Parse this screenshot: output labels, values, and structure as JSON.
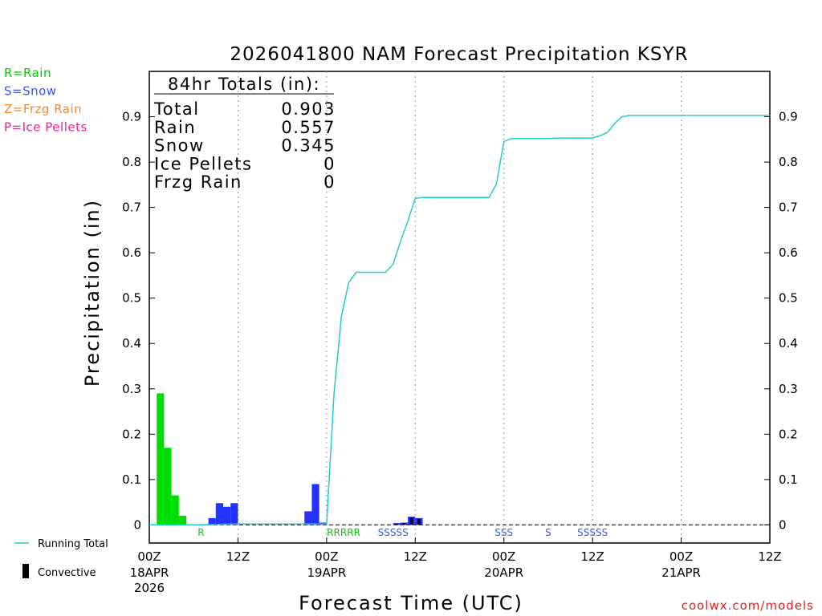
{
  "chart_data": {
    "type": "bar",
    "title": "2026041800 NAM Forecast Precipitation KSYR",
    "xlabel": "Forecast Time (UTC)",
    "ylabel": "Precipitation  (in)",
    "ylim": [
      -0.04,
      1.0
    ],
    "xlim_hours": [
      0,
      84
    ],
    "y_ticks": [
      0,
      0.1,
      0.2,
      0.3,
      0.4,
      0.5,
      0.6,
      0.7,
      0.8,
      0.9
    ],
    "y_tick_labels": [
      "0",
      "0.1",
      "0.2",
      "0.3",
      "0.4",
      "0.5",
      "0.6",
      "0.7",
      "0.8",
      "0.9"
    ],
    "x_ticks": [
      {
        "hour": 0,
        "label": "00Z",
        "date": "18APR",
        "year": "2026"
      },
      {
        "hour": 12,
        "label": "12Z",
        "date": "",
        "year": ""
      },
      {
        "hour": 24,
        "label": "00Z",
        "date": "19APR",
        "year": ""
      },
      {
        "hour": 36,
        "label": "12Z",
        "date": "",
        "year": ""
      },
      {
        "hour": 48,
        "label": "00Z",
        "date": "20APR",
        "year": ""
      },
      {
        "hour": 60,
        "label": "12Z",
        "date": "",
        "year": ""
      },
      {
        "hour": 72,
        "label": "00Z",
        "date": "21APR",
        "year": ""
      },
      {
        "hour": 84,
        "label": "12Z",
        "date": "",
        "year": ""
      }
    ],
    "totals": {
      "header": "84hr Totals (in):",
      "rows": [
        {
          "label": "Total",
          "value": "0.903"
        },
        {
          "label": "Rain",
          "value": "0.557"
        },
        {
          "label": "Snow",
          "value": "0.345"
        },
        {
          "label": "Ice Pellets",
          "value": "0"
        },
        {
          "label": "Frzg Rain",
          "value": "0"
        }
      ]
    },
    "type_legend": [
      {
        "label": "R=Rain",
        "color": "#00cc00"
      },
      {
        "label": "S=Snow",
        "color": "#3355ff"
      },
      {
        "label": "Z=Frzg Rain",
        "color": "#ee8833"
      },
      {
        "label": "P=Ice Pellets",
        "color": "#ee2288"
      }
    ],
    "bottom_legend": {
      "running_total": "Running Total",
      "convective": "Convective"
    },
    "series": [
      {
        "name": "Rain",
        "color": "#00dd00",
        "bars": [
          {
            "hour": 1.5,
            "value": 0.29
          },
          {
            "hour": 2.5,
            "value": 0.17
          },
          {
            "hour": 3.5,
            "value": 0.065
          },
          {
            "hour": 4.5,
            "value": 0.02
          }
        ]
      },
      {
        "name": "Snow",
        "color": "#2233ff",
        "bars": [
          {
            "hour": 8.5,
            "value": 0.015
          },
          {
            "hour": 9.5,
            "value": 0.048
          },
          {
            "hour": 10.5,
            "value": 0.04
          },
          {
            "hour": 11.5,
            "value": 0.048
          },
          {
            "hour": 21.5,
            "value": 0.03
          },
          {
            "hour": 22.5,
            "value": 0.09
          },
          {
            "hour": 23.5,
            "value": 0.005
          },
          {
            "hour": 33.5,
            "value": 0.004
          },
          {
            "hour": 34.5,
            "value": 0.005
          },
          {
            "hour": 35.5,
            "value": 0.018
          },
          {
            "hour": 36.5,
            "value": 0.015
          }
        ]
      }
    ],
    "convective": [
      {
        "hour": 33.5,
        "value": 0.003
      },
      {
        "hour": 34.5,
        "value": 0.004
      },
      {
        "hour": 35.5,
        "value": 0.016
      },
      {
        "hour": 36.5,
        "value": 0.013
      }
    ],
    "type_markers": [
      {
        "hour": 7.0,
        "text": "R",
        "color": "#00cc00"
      },
      {
        "hour": 26.3,
        "text": "RRRRR",
        "color": "#00cc00"
      },
      {
        "hour": 33.0,
        "text": "SSSSS",
        "color": "#3355ff"
      },
      {
        "hour": 48.0,
        "text": "SSS",
        "color": "#3355ff"
      },
      {
        "hour": 54.0,
        "text": "S",
        "color": "#3355ff"
      },
      {
        "hour": 60.0,
        "text": "SSSSS",
        "color": "#3355ff"
      }
    ],
    "running_total": {
      "color": "#22cccc",
      "hours": [
        0,
        6,
        12,
        24,
        25,
        26,
        27,
        28,
        29,
        30,
        31,
        32,
        33,
        34,
        35,
        36,
        37,
        38,
        39,
        40,
        41,
        42,
        43,
        44,
        45,
        46,
        47,
        48,
        49,
        50,
        51,
        52,
        53,
        54,
        55,
        56,
        57,
        58,
        59,
        60,
        61,
        62,
        63,
        64,
        65,
        66,
        84
      ],
      "values": [
        0,
        0,
        0.002,
        0.002,
        0.29,
        0.46,
        0.535,
        0.557,
        0.557,
        0.557,
        0.557,
        0.557,
        0.575,
        0.625,
        0.67,
        0.72,
        0.722,
        0.722,
        0.722,
        0.722,
        0.722,
        0.722,
        0.722,
        0.722,
        0.722,
        0.722,
        0.752,
        0.845,
        0.852,
        0.852,
        0.852,
        0.852,
        0.852,
        0.852,
        0.853,
        0.853,
        0.853,
        0.853,
        0.853,
        0.853,
        0.858,
        0.865,
        0.885,
        0.9,
        0.903,
        0.903,
        0.903
      ]
    }
  },
  "footer": {
    "credit": "coolwx.com/models"
  }
}
